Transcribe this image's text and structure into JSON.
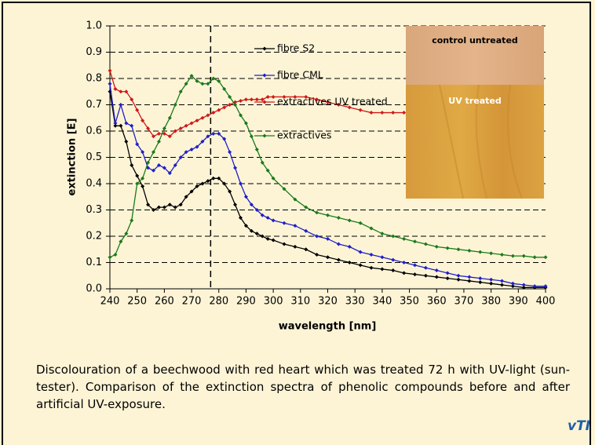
{
  "chart_data": {
    "type": "line",
    "x": [
      240,
      242,
      244,
      246,
      248,
      250,
      252,
      254,
      256,
      258,
      260,
      262,
      264,
      266,
      268,
      270,
      272,
      274,
      276,
      278,
      280,
      282,
      284,
      286,
      288,
      290,
      292,
      294,
      296,
      298,
      300,
      304,
      308,
      312,
      316,
      320,
      324,
      328,
      332,
      336,
      340,
      344,
      348,
      352,
      356,
      360,
      364,
      368,
      372,
      376,
      380,
      384,
      388,
      392,
      396,
      400
    ],
    "series": [
      {
        "name": "fibre S2",
        "color": "#000000",
        "values": [
          0.75,
          0.62,
          0.62,
          0.56,
          0.47,
          0.43,
          0.39,
          0.32,
          0.3,
          0.31,
          0.31,
          0.32,
          0.31,
          0.32,
          0.35,
          0.37,
          0.39,
          0.4,
          0.41,
          0.42,
          0.42,
          0.4,
          0.37,
          0.32,
          0.27,
          0.24,
          0.22,
          0.21,
          0.2,
          0.19,
          0.185,
          0.17,
          0.16,
          0.15,
          0.13,
          0.12,
          0.11,
          0.1,
          0.09,
          0.08,
          0.075,
          0.07,
          0.06,
          0.055,
          0.05,
          0.045,
          0.04,
          0.035,
          0.03,
          0.025,
          0.02,
          0.015,
          0.01,
          0.005,
          0.005,
          0.005
        ]
      },
      {
        "name": "fibre CML",
        "color": "#1f1fc8",
        "values": [
          0.78,
          0.63,
          0.7,
          0.63,
          0.62,
          0.55,
          0.52,
          0.46,
          0.45,
          0.47,
          0.46,
          0.44,
          0.47,
          0.5,
          0.52,
          0.53,
          0.54,
          0.56,
          0.58,
          0.59,
          0.59,
          0.57,
          0.52,
          0.46,
          0.4,
          0.35,
          0.32,
          0.3,
          0.28,
          0.27,
          0.26,
          0.25,
          0.24,
          0.22,
          0.2,
          0.19,
          0.17,
          0.16,
          0.14,
          0.13,
          0.12,
          0.11,
          0.1,
          0.09,
          0.08,
          0.07,
          0.06,
          0.05,
          0.045,
          0.04,
          0.035,
          0.03,
          0.02,
          0.015,
          0.01,
          0.01
        ]
      },
      {
        "name": "extractives UV treated",
        "color": "#d01818",
        "values": [
          0.83,
          0.76,
          0.75,
          0.75,
          0.72,
          0.68,
          0.64,
          0.61,
          0.58,
          0.59,
          0.59,
          0.58,
          0.6,
          0.61,
          0.62,
          0.63,
          0.64,
          0.65,
          0.66,
          0.67,
          0.68,
          0.69,
          0.7,
          0.71,
          0.715,
          0.72,
          0.72,
          0.72,
          0.72,
          0.73,
          0.73,
          0.73,
          0.73,
          0.73,
          0.72,
          0.71,
          0.7,
          0.69,
          0.68,
          0.67,
          0.67,
          0.67,
          0.67,
          null,
          null,
          null,
          null,
          null,
          null,
          null,
          null,
          null,
          null,
          null,
          null,
          null
        ]
      },
      {
        "name": "extractives",
        "color": "#1a7a1a",
        "values": [
          0.12,
          0.13,
          0.18,
          0.21,
          0.26,
          0.4,
          0.42,
          0.48,
          0.52,
          0.56,
          0.61,
          0.65,
          0.7,
          0.75,
          0.78,
          0.81,
          0.79,
          0.78,
          0.78,
          0.8,
          0.79,
          0.76,
          0.73,
          0.7,
          0.66,
          0.63,
          0.58,
          0.53,
          0.48,
          0.45,
          0.42,
          0.38,
          0.34,
          0.31,
          0.29,
          0.28,
          0.27,
          0.26,
          0.25,
          0.23,
          0.21,
          0.2,
          0.19,
          0.18,
          0.17,
          0.16,
          0.155,
          0.15,
          0.145,
          0.14,
          0.135,
          0.13,
          0.125,
          0.125,
          0.12,
          0.12
        ]
      }
    ],
    "x_label": "wavelength [nm]",
    "y_label": "extinction [E]",
    "xlim": [
      240,
      400
    ],
    "xticks": [
      240,
      250,
      260,
      270,
      280,
      290,
      300,
      310,
      320,
      330,
      340,
      350,
      360,
      370,
      380,
      390,
      400
    ],
    "ylim": [
      0,
      1
    ],
    "yticks": [
      {
        "value": 0,
        "label": "0.0"
      },
      0.1,
      0.2,
      0.3,
      0.4,
      0.5,
      0.6,
      0.7,
      0.8,
      0.9,
      {
        "value": 1,
        "label": "1.0"
      }
    ],
    "grid": true,
    "grid_style": "dashed",
    "vline": 277,
    "inset": {
      "top_label": "control untreated",
      "bottom_label": "UV treated"
    }
  },
  "caption": "Discolouration of a beechwood with red heart which was treated 72 h with UV-light (sun-tester). Comparison of the extinction spectra of phenolic compounds before and after artificial UV-exposure.",
  "logo": "vTI"
}
